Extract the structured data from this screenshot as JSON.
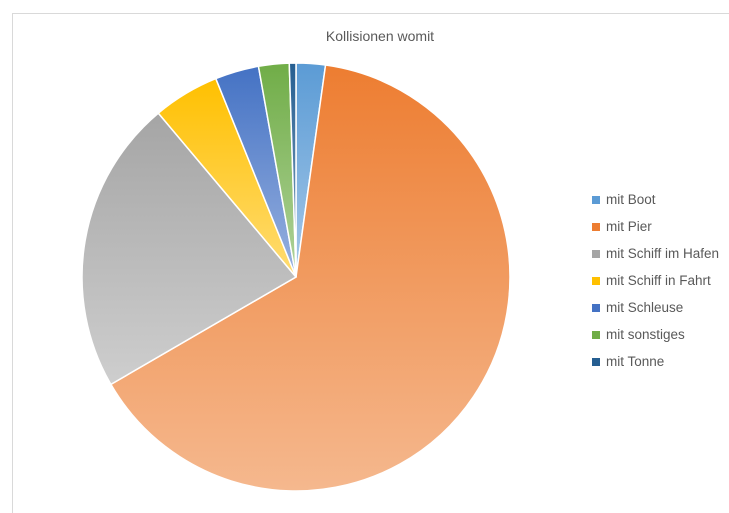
{
  "chart_data": {
    "type": "pie",
    "title": "Kollisionen womit",
    "legend_position": "right",
    "slices": [
      {
        "label": "mit Boot",
        "value": 2.2,
        "color": "#5b9bd5"
      },
      {
        "label": "mit Pier",
        "value": 64.3,
        "color": "#ed7d31"
      },
      {
        "label": "mit Schiff im Hafen",
        "value": 22.2,
        "color": "#a5a5a5"
      },
      {
        "label": "mit Schiff in Fahrt",
        "value": 5.0,
        "color": "#ffc000"
      },
      {
        "label": "mit Schleuse",
        "value": 3.3,
        "color": "#4472c4"
      },
      {
        "label": "mit sonstiges",
        "value": 2.3,
        "color": "#70ad47"
      },
      {
        "label": "mit Tonne",
        "value": 0.5,
        "color": "#255e91"
      }
    ]
  }
}
